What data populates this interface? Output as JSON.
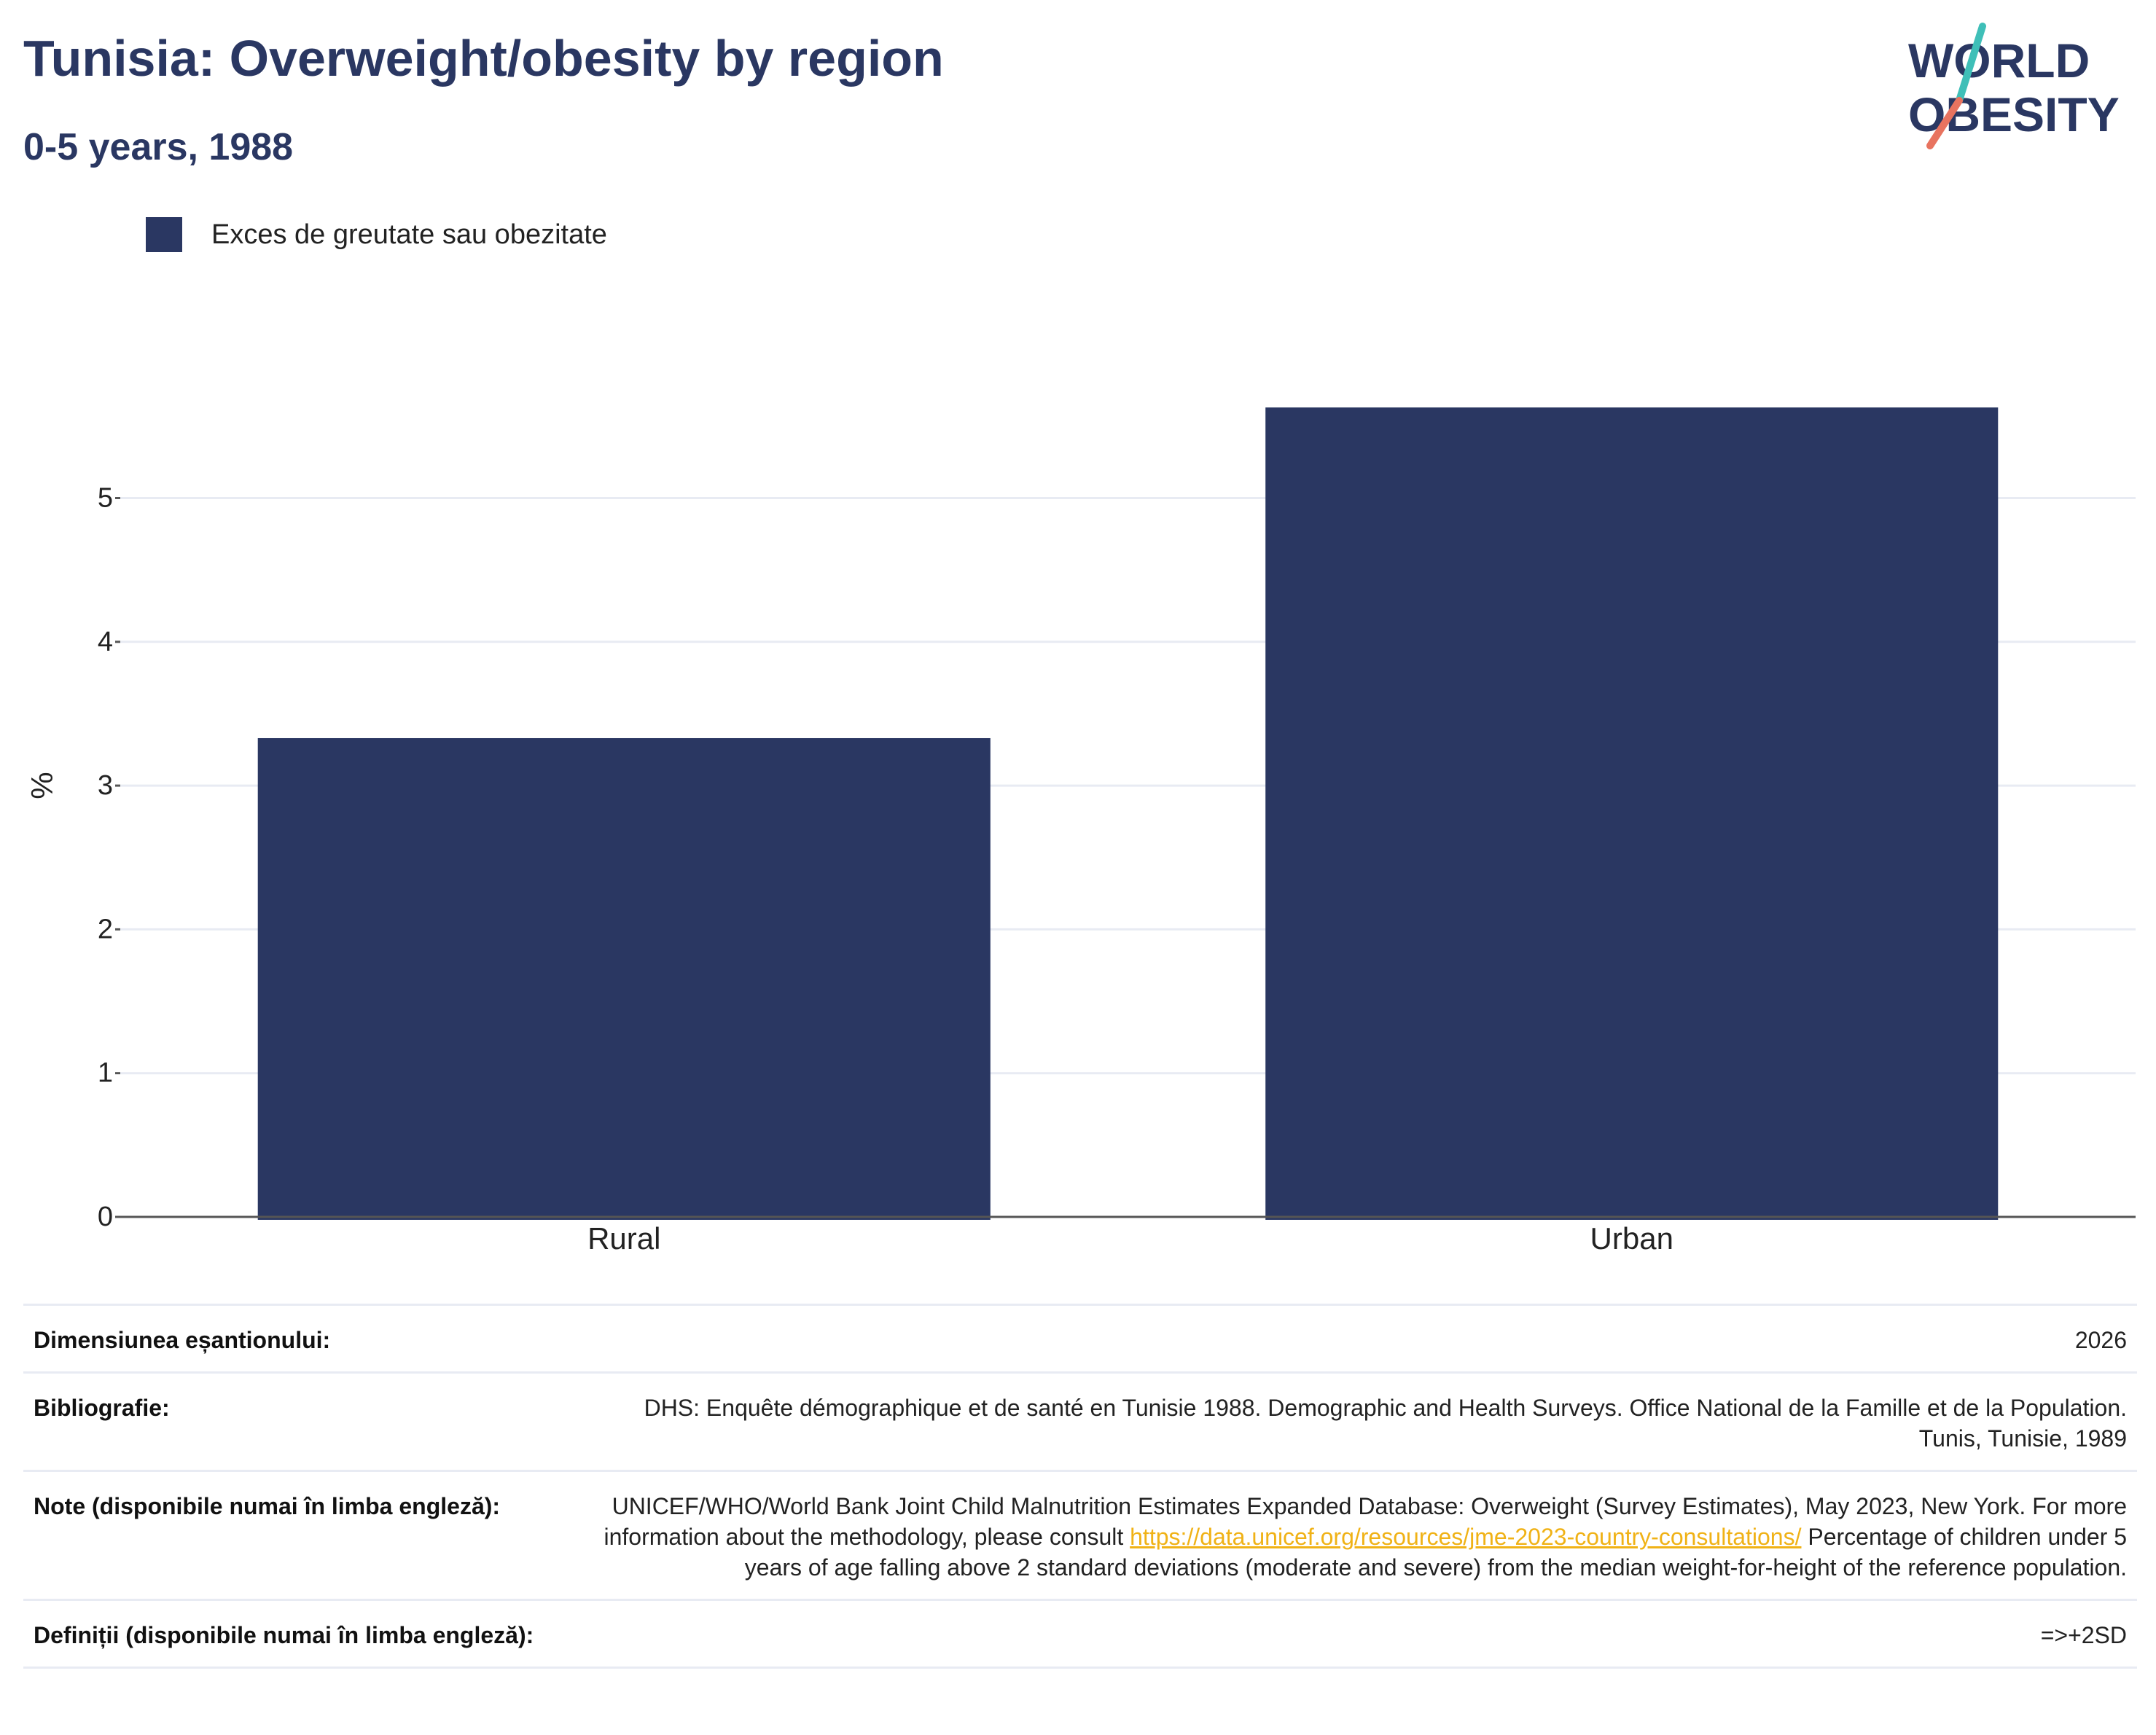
{
  "header": {
    "title": "Tunisia: Overweight/obesity by region",
    "subtitle": "0-5 years, 1988"
  },
  "logo": {
    "line1": "WORLD",
    "line2": "OBESITY",
    "colors": {
      "navy": "#2a3762",
      "teal": "#3fbfb8",
      "coral": "#e8735f"
    }
  },
  "colors": {
    "bar": "#2a3762",
    "grid": "#e8ebf3",
    "axis": "#555555",
    "link": "#f0b216"
  },
  "chart_data": {
    "type": "bar",
    "categories": [
      "Rural",
      "Urban"
    ],
    "series": [
      {
        "name": "Exces de greutate sau obezitate",
        "values": [
          3.33,
          5.63
        ]
      }
    ],
    "ylabel": "%",
    "ylim": [
      0,
      6
    ],
    "yticks": [
      0,
      1,
      2,
      3,
      4,
      5
    ],
    "grid": true,
    "legend": "top-left"
  },
  "meta": {
    "sample_size": {
      "label": "Dimensiunea eșantionului:",
      "value": "2026"
    },
    "bibliography": {
      "label": "Bibliografie:",
      "value": "DHS: Enquête démographique et de santé en Tunisie 1988. Demographic and Health Surveys. Office National de la Famille et de la Population. Tunis, Tunisie, 1989"
    },
    "notes": {
      "label": "Note (disponibile numai în limba engleză):",
      "value_before": "UNICEF/WHO/World Bank Joint Child Malnutrition Estimates Expanded Database: Overweight (Survey Estimates), May 2023, New York. For more information about the methodology, please consult ",
      "link": "https://data.unicef.org/resources/jme-2023-country-consultations/",
      "value_after": " Percentage of children under 5 years of age falling above 2 standard deviations (moderate and severe) from the median weight-for-height of the reference population."
    },
    "definitions": {
      "label": "Definiții (disponibile numai în limba engleză):",
      "value": "=>+2SD"
    }
  }
}
